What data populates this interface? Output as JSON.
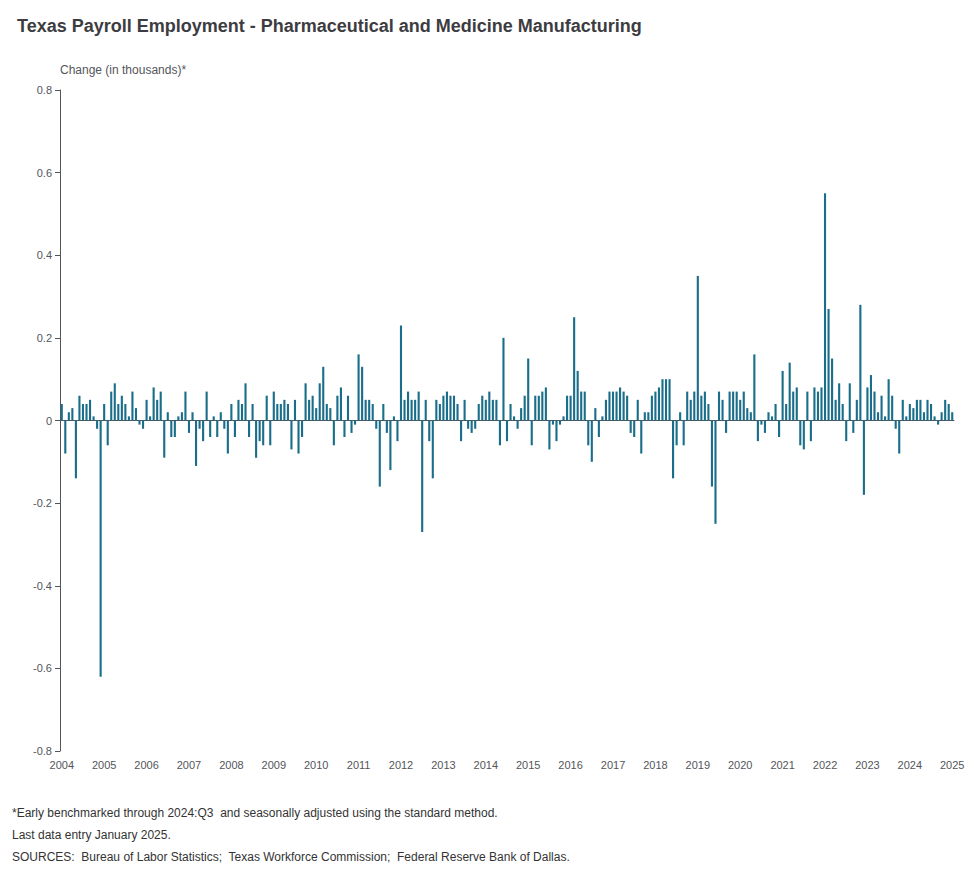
{
  "chart_data": {
    "type": "bar",
    "title": "Texas Payroll Employment - Pharmaceutical and Medicine Manufacturing",
    "ylabel": "Change (in thousands)*",
    "annotations": [
      "*Early benchmarked through 2024:Q3  and seasonally adjusted using the standard method.",
      "Last data entry January 2025.",
      "SOURCES:  Bureau of Labor Statistics;  Texas Workforce Commission;  Federal Reserve Bank of Dallas."
    ],
    "color": "#1a6e8a",
    "ylim": [
      -0.8,
      0.8
    ],
    "yticks": [
      -0.8,
      -0.6,
      -0.4,
      -0.2,
      0,
      0.2,
      0.4,
      0.6,
      0.8
    ],
    "grid": false,
    "categories": [
      "2004",
      null,
      null,
      null,
      null,
      null,
      null,
      null,
      null,
      null,
      null,
      null,
      "2005",
      null,
      null,
      null,
      null,
      null,
      null,
      null,
      null,
      null,
      null,
      null,
      "2006",
      null,
      null,
      null,
      null,
      null,
      null,
      null,
      null,
      null,
      null,
      null,
      "2007",
      null,
      null,
      null,
      null,
      null,
      null,
      null,
      null,
      null,
      null,
      null,
      "2008",
      null,
      null,
      null,
      null,
      null,
      null,
      null,
      null,
      null,
      null,
      null,
      "2009",
      null,
      null,
      null,
      null,
      null,
      null,
      null,
      null,
      null,
      null,
      null,
      "2010",
      null,
      null,
      null,
      null,
      null,
      null,
      null,
      null,
      null,
      null,
      null,
      "2011",
      null,
      null,
      null,
      null,
      null,
      null,
      null,
      null,
      null,
      null,
      null,
      "2012",
      null,
      null,
      null,
      null,
      null,
      null,
      null,
      null,
      null,
      null,
      null,
      "2013",
      null,
      null,
      null,
      null,
      null,
      null,
      null,
      null,
      null,
      null,
      null,
      "2014",
      null,
      null,
      null,
      null,
      null,
      null,
      null,
      null,
      null,
      null,
      null,
      "2015",
      null,
      null,
      null,
      null,
      null,
      null,
      null,
      null,
      null,
      null,
      null,
      "2016",
      null,
      null,
      null,
      null,
      null,
      null,
      null,
      null,
      null,
      null,
      null,
      "2017",
      null,
      null,
      null,
      null,
      null,
      null,
      null,
      null,
      null,
      null,
      null,
      "2018",
      null,
      null,
      null,
      null,
      null,
      null,
      null,
      null,
      null,
      null,
      null,
      "2019",
      null,
      null,
      null,
      null,
      null,
      null,
      null,
      null,
      null,
      null,
      null,
      "2020",
      null,
      null,
      null,
      null,
      null,
      null,
      null,
      null,
      null,
      null,
      null,
      "2021",
      null,
      null,
      null,
      null,
      null,
      null,
      null,
      null,
      null,
      null,
      null,
      "2022",
      null,
      null,
      null,
      null,
      null,
      null,
      null,
      null,
      null,
      null,
      null,
      "2023",
      null,
      null,
      null,
      null,
      null,
      null,
      null,
      null,
      null,
      null,
      null,
      "2024",
      null,
      null,
      null,
      null,
      null,
      null,
      null,
      null,
      null,
      null,
      null,
      "2025"
    ],
    "values": [
      0.04,
      -0.08,
      0.02,
      0.03,
      -0.14,
      0.06,
      0.04,
      0.04,
      0.05,
      0.01,
      -0.02,
      -0.62,
      0.04,
      -0.06,
      0.07,
      0.09,
      0.04,
      0.06,
      0.04,
      0.01,
      0.07,
      0.03,
      -0.01,
      -0.02,
      0.05,
      0.01,
      0.08,
      0.05,
      0.07,
      -0.09,
      0.02,
      -0.04,
      -0.04,
      0.01,
      0.02,
      0.07,
      -0.03,
      0.02,
      -0.11,
      -0.02,
      -0.05,
      0.07,
      -0.04,
      0.01,
      -0.04,
      0.02,
      -0.02,
      -0.08,
      0.04,
      -0.04,
      0.05,
      0.04,
      0.09,
      -0.04,
      0.04,
      -0.09,
      -0.05,
      -0.06,
      0.06,
      -0.06,
      0.07,
      0.04,
      0.04,
      0.05,
      0.04,
      -0.07,
      0.05,
      -0.08,
      -0.04,
      0.09,
      0.05,
      0.06,
      0.03,
      0.09,
      0.13,
      0.04,
      0.03,
      -0.06,
      0.06,
      0.08,
      -0.04,
      0.06,
      -0.03,
      -0.01,
      0.16,
      0.13,
      0.05,
      0.05,
      0.04,
      -0.02,
      -0.16,
      0.04,
      -0.03,
      -0.12,
      0.01,
      -0.05,
      0.23,
      0.05,
      0.07,
      0.05,
      0.05,
      0.07,
      -0.27,
      0.05,
      -0.05,
      -0.14,
      0.05,
      0.04,
      0.06,
      0.07,
      0.06,
      0.06,
      0.04,
      -0.05,
      0.05,
      -0.02,
      -0.03,
      -0.02,
      0.04,
      0.06,
      0.05,
      0.07,
      0.05,
      0.05,
      -0.06,
      0.2,
      -0.05,
      0.04,
      0.01,
      -0.02,
      0.03,
      0.06,
      0.15,
      -0.06,
      0.06,
      0.06,
      0.07,
      0.08,
      -0.07,
      -0.01,
      -0.05,
      -0.01,
      0.01,
      0.06,
      0.06,
      0.25,
      0.12,
      0.07,
      0.07,
      -0.06,
      -0.1,
      0.03,
      -0.04,
      0.01,
      0.05,
      0.07,
      0.07,
      0.07,
      0.08,
      0.07,
      0.06,
      -0.03,
      -0.04,
      0.05,
      -0.08,
      0.02,
      0.02,
      0.06,
      0.07,
      0.08,
      0.1,
      0.1,
      0.1,
      -0.14,
      -0.06,
      0.02,
      -0.06,
      0.07,
      0.05,
      0.07,
      0.35,
      0.06,
      0.07,
      0.04,
      -0.16,
      -0.25,
      0.07,
      0.05,
      -0.03,
      0.07,
      0.07,
      0.07,
      0.05,
      0.07,
      0.03,
      0.02,
      0.16,
      -0.05,
      -0.01,
      -0.03,
      0.02,
      0.01,
      0.04,
      -0.04,
      0.12,
      0.04,
      0.14,
      0.07,
      0.08,
      -0.06,
      -0.07,
      0.07,
      -0.05,
      0.08,
      0.07,
      0.08,
      0.55,
      0.27,
      0.15,
      0.05,
      0.09,
      0.04,
      -0.05,
      0.09,
      -0.03,
      0.05,
      0.28,
      -0.18,
      0.08,
      0.11,
      0.07,
      0.02,
      0.06,
      0.01,
      0.1,
      0.06,
      -0.02,
      -0.08,
      0.05,
      0.01,
      0.04,
      0.03,
      0.05,
      0.05,
      0.02,
      0.05,
      0.04,
      0.01,
      -0.01,
      0.02,
      0.05,
      0.04,
      0.02
    ]
  }
}
